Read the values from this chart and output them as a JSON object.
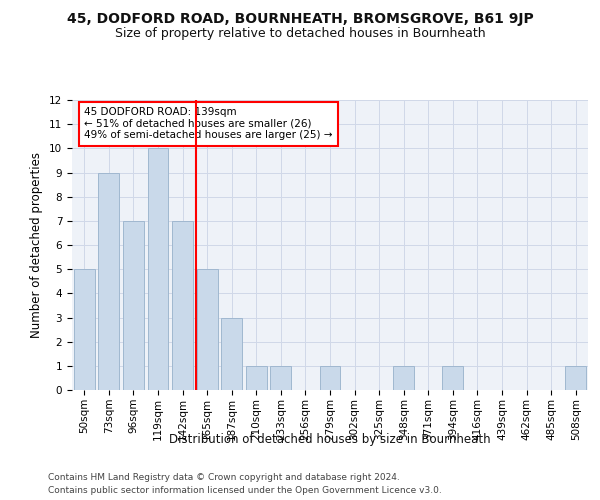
{
  "title": "45, DODFORD ROAD, BOURNHEATH, BROMSGROVE, B61 9JP",
  "subtitle": "Size of property relative to detached houses in Bournheath",
  "xlabel": "Distribution of detached houses by size in Bournheath",
  "ylabel": "Number of detached properties",
  "categories": [
    "50sqm",
    "73sqm",
    "96sqm",
    "119sqm",
    "142sqm",
    "165sqm",
    "187sqm",
    "210sqm",
    "233sqm",
    "256sqm",
    "279sqm",
    "302sqm",
    "325sqm",
    "348sqm",
    "371sqm",
    "394sqm",
    "416sqm",
    "439sqm",
    "462sqm",
    "485sqm",
    "508sqm"
  ],
  "values": [
    5,
    9,
    7,
    10,
    7,
    5,
    3,
    1,
    1,
    0,
    1,
    0,
    0,
    1,
    0,
    1,
    0,
    0,
    0,
    0,
    1
  ],
  "bar_color": "#c9d9ea",
  "bar_edgecolor": "#a0b8d0",
  "grid_color": "#d0d8e8",
  "bg_color": "#eef2f8",
  "ylim": [
    0,
    12
  ],
  "yticks": [
    0,
    1,
    2,
    3,
    4,
    5,
    6,
    7,
    8,
    9,
    10,
    11,
    12
  ],
  "ref_line_x": 4.55,
  "ref_line_color": "red",
  "annotation_text": "45 DODFORD ROAD: 139sqm\n← 51% of detached houses are smaller (26)\n49% of semi-detached houses are larger (25) →",
  "annotation_box_color": "white",
  "annotation_box_edgecolor": "red",
  "footer1": "Contains HM Land Registry data © Crown copyright and database right 2024.",
  "footer2": "Contains public sector information licensed under the Open Government Licence v3.0.",
  "title_fontsize": 10,
  "subtitle_fontsize": 9,
  "ylabel_fontsize": 8.5,
  "xlabel_fontsize": 8.5,
  "tick_fontsize": 7.5,
  "annotation_fontsize": 7.5,
  "footer_fontsize": 6.5
}
